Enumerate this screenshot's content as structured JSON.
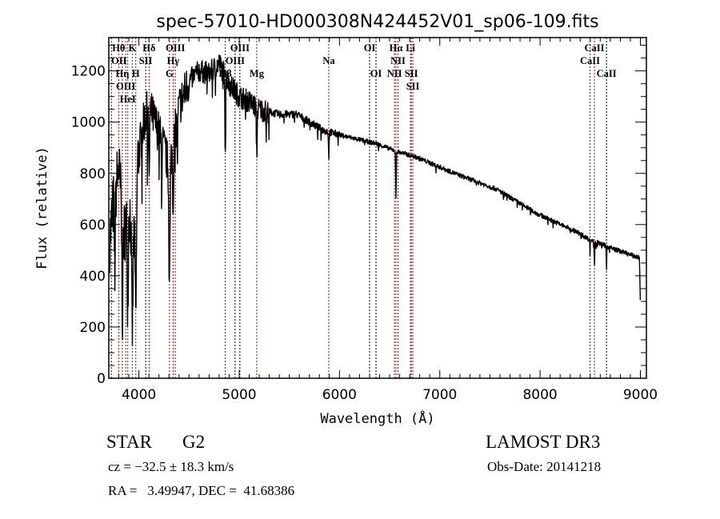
{
  "chart_data": {
    "type": "line",
    "title": "spec-57010-HD000308N424452V01_sp06-109.fits",
    "xlabel": "Wavelength (Å)",
    "ylabel": "Flux (relative)",
    "xlim": [
      3700,
      9060
    ],
    "ylim": [
      0,
      1330
    ],
    "xticks": [
      4000,
      5000,
      6000,
      7000,
      8000,
      9000
    ],
    "yticks": [
      0,
      200,
      400,
      600,
      800,
      1000,
      1200
    ],
    "grid": false,
    "series": [
      {
        "name": "spectrum",
        "continuum_x": [
          3710,
          3750,
          3800,
          3850,
          3900,
          3950,
          3990,
          4050,
          4100,
          4200,
          4250,
          4300,
          4350,
          4400,
          4500,
          4600,
          4700,
          4800,
          4900,
          5000,
          5100,
          5200,
          5300,
          5400,
          5571,
          5834,
          6000,
          6368,
          6584,
          6767,
          7166,
          7565,
          7963,
          8362,
          8498,
          8705,
          8976,
          8990,
          9000
        ],
        "continuum_y": [
          540,
          700,
          820,
          560,
          660,
          600,
          860,
          1000,
          1060,
          960,
          900,
          820,
          930,
          1060,
          1160,
          1200,
          1190,
          1230,
          1150,
          1100,
          1080,
          1050,
          1040,
          1030,
          1031,
          969,
          950,
          916,
          884,
          863,
          797,
          738,
          644,
          572,
          541,
          509,
          472,
          470,
          290
        ],
        "absorption_lines": [
          {
            "wl": 3760,
            "depth": 300,
            "sigma": 5
          },
          {
            "wl": 3835,
            "depth": 380,
            "sigma": 5
          },
          {
            "wl": 3889,
            "depth": 330,
            "sigma": 5
          },
          {
            "wl": 3934,
            "depth": 430,
            "sigma": 7
          },
          {
            "wl": 3969,
            "depth": 480,
            "sigma": 7
          },
          {
            "wl": 4102,
            "depth": 300,
            "sigma": 4
          },
          {
            "wl": 4227,
            "depth": 200,
            "sigma": 3
          },
          {
            "wl": 4305,
            "depth": 450,
            "sigma": 6
          },
          {
            "wl": 4341,
            "depth": 250,
            "sigma": 4
          },
          {
            "wl": 4384,
            "depth": 150,
            "sigma": 3
          },
          {
            "wl": 4861,
            "depth": 300,
            "sigma": 3
          },
          {
            "wl": 5175,
            "depth": 180,
            "sigma": 4
          },
          {
            "wl": 5270,
            "depth": 100,
            "sigma": 3
          },
          {
            "wl": 5893,
            "depth": 100,
            "sigma": 3
          },
          {
            "wl": 6563,
            "depth": 190,
            "sigma": 3
          },
          {
            "wl": 8498,
            "depth": 60,
            "sigma": 2
          },
          {
            "wl": 8542,
            "depth": 110,
            "sigma": 2
          },
          {
            "wl": 8662,
            "depth": 100,
            "sigma": 2
          }
        ]
      }
    ],
    "spectral_lines": [
      {
        "wl": 3798,
        "label": "Hθ",
        "row": 0,
        "color": "#c00000"
      },
      {
        "wl": 3727,
        "label": "OII",
        "row": 1,
        "color": "#c00000"
      },
      {
        "wl": 3869,
        "label": "OIII",
        "row": 2,
        "color": "#c00000"
      },
      {
        "wl": 3835,
        "label": "Hη",
        "row": 2,
        "color": "#c00000"
      },
      {
        "wl": 3889,
        "label": "HeI",
        "row": 1,
        "color": "#c00000"
      },
      {
        "wl": 3934,
        "label": "K",
        "row": 0,
        "color": "#c00000"
      },
      {
        "wl": 3969,
        "label": "H",
        "row": 2,
        "color": "#c00000"
      },
      {
        "wl": 4068,
        "label": "SII",
        "row": 1,
        "color": "#000000"
      },
      {
        "wl": 4102,
        "label": "Hδ",
        "row": 0,
        "color": "#c00000"
      },
      {
        "wl": 4305,
        "label": "G",
        "row": 2,
        "color": "#c00000"
      },
      {
        "wl": 4341,
        "label": "Hγ",
        "row": 1,
        "color": "#c00000"
      },
      {
        "wl": 4363,
        "label": "OIII",
        "row": 0,
        "color": "#c00000"
      },
      {
        "wl": 4861,
        "label": "Hβ",
        "row": 2,
        "color": "#c00000"
      },
      {
        "wl": 4959,
        "label": "OIII",
        "row": 1,
        "color": "#000000"
      },
      {
        "wl": 5007,
        "label": "OIII",
        "row": 0,
        "color": "#000000"
      },
      {
        "wl": 5175,
        "label": "Mg",
        "row": 2,
        "color": "#c00000"
      },
      {
        "wl": 5893,
        "label": "Na",
        "row": 1,
        "color": "#c00000"
      },
      {
        "wl": 6300,
        "label": "OI",
        "row": 0,
        "color": "#000000"
      },
      {
        "wl": 6364,
        "label": "OI",
        "row": 2,
        "color": "#000000"
      },
      {
        "wl": 6548,
        "label": "NII",
        "row": 2,
        "color": "#c00000"
      },
      {
        "wl": 6563,
        "label": "Hα",
        "row": 0,
        "color": "#c00000"
      },
      {
        "wl": 6583,
        "label": "NII",
        "row": 1,
        "color": "#c00000"
      },
      {
        "wl": 6708,
        "label": "Li",
        "row": 1,
        "color": "#c00000"
      },
      {
        "wl": 6716,
        "label": "SII",
        "row": 0,
        "color": "#c00000"
      },
      {
        "wl": 6731,
        "label": "SII",
        "row": 2,
        "color": "#c00000"
      },
      {
        "wl": 8498,
        "label": "CaII",
        "row": 1,
        "color": "#c00000"
      },
      {
        "wl": 8542,
        "label": "CaII",
        "row": 0,
        "color": "#c00000"
      },
      {
        "wl": 8662,
        "label": "CaII",
        "row": 2,
        "color": "#000000"
      }
    ]
  },
  "info": {
    "object_type": "STAR",
    "subclass": "G2",
    "survey": "LAMOST DR3",
    "redshift": "cz = −32.5 ± 18.3 km/s",
    "obs_date": "Obs-Date: 20141218",
    "coords": "RA =   3.49947, DEC =  41.68386"
  }
}
